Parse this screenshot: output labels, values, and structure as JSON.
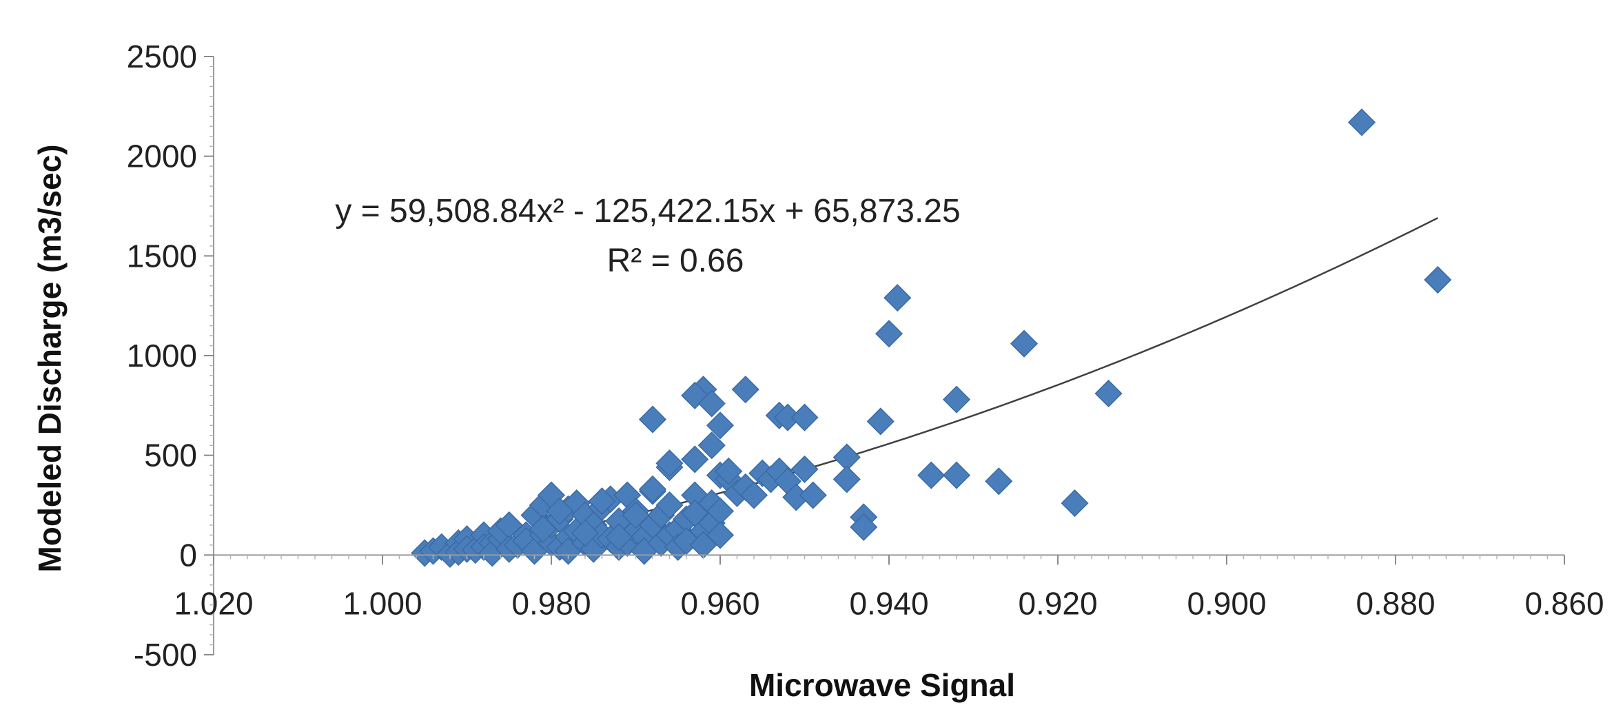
{
  "chart_data": {
    "type": "scatter",
    "title": "",
    "xlabel": "Microwave Signal",
    "ylabel": "Modeled Discharge (m3/sec)",
    "xlim": [
      1.02,
      0.86
    ],
    "ylim": [
      -500,
      2500
    ],
    "x_reversed": true,
    "x_ticks": [
      1.02,
      1.0,
      0.98,
      0.96,
      0.94,
      0.92,
      0.9,
      0.88,
      0.86
    ],
    "x_tick_labels": [
      "1.020",
      "1.000",
      "0.980",
      "0.960",
      "0.940",
      "0.920",
      "0.900",
      "0.880",
      "0.860"
    ],
    "y_ticks": [
      -500,
      0,
      500,
      1000,
      1500,
      2000,
      2500
    ],
    "y_tick_labels": [
      "-500",
      "0",
      "500",
      "1000",
      "1500",
      "2000",
      "2500"
    ],
    "grid": false,
    "legend": "none",
    "marker": "diamond",
    "marker_color": "#4a7ebb",
    "trendline": {
      "type": "polynomial",
      "coefficients": [
        59508.84,
        -125422.15,
        65873.25
      ],
      "x_range": [
        0.995,
        0.875
      ],
      "color": "#404040",
      "equation_label": "y = 59,508.84x² - 125,422.15x + 65,873.25",
      "r2_label": "R² = 0.66"
    },
    "series": [
      {
        "x": [
          0.995,
          0.994,
          0.993,
          0.992,
          0.991,
          0.991,
          0.99,
          0.99,
          0.989,
          0.988,
          0.988,
          0.987,
          0.987,
          0.986,
          0.986,
          0.985,
          0.985,
          0.984,
          0.983,
          0.983,
          0.982,
          0.982,
          0.981,
          0.981,
          0.98,
          0.98,
          0.98,
          0.979,
          0.979,
          0.978,
          0.978,
          0.978,
          0.977,
          0.977,
          0.976,
          0.976,
          0.975,
          0.975,
          0.974,
          0.974,
          0.973,
          0.973,
          0.972,
          0.972,
          0.971,
          0.971,
          0.97,
          0.97,
          0.969,
          0.969,
          0.968,
          0.968,
          0.967,
          0.967,
          0.966,
          0.966,
          0.965,
          0.965,
          0.964,
          0.964,
          0.963,
          0.963,
          0.962,
          0.962,
          0.961,
          0.961,
          0.96,
          0.96,
          0.96,
          0.959,
          0.958,
          0.957,
          0.956,
          0.955,
          0.954,
          0.953,
          0.952,
          0.951,
          0.95,
          0.949,
          0.945,
          0.945,
          0.943,
          0.943,
          0.981,
          0.979,
          0.976,
          0.974,
          0.972,
          0.97,
          0.968,
          0.966,
          0.963,
          0.962,
          0.961,
          0.96,
          0.968,
          0.966,
          0.963,
          0.961,
          0.959,
          0.957,
          0.953,
          0.952,
          0.95,
          0.941,
          0.94,
          0.939,
          0.935,
          0.932,
          0.932,
          0.927,
          0.924,
          0.918,
          0.914,
          0.875,
          0.884
        ],
        "y": [
          10,
          20,
          40,
          5,
          60,
          15,
          80,
          30,
          25,
          100,
          40,
          60,
          10,
          80,
          120,
          150,
          30,
          50,
          100,
          70,
          200,
          20,
          250,
          100,
          60,
          150,
          300,
          180,
          40,
          230,
          90,
          20,
          120,
          260,
          60,
          200,
          150,
          30,
          240,
          100,
          80,
          280,
          170,
          40,
          60,
          300,
          220,
          120,
          90,
          20,
          150,
          320,
          60,
          200,
          100,
          250,
          130,
          40,
          180,
          70,
          300,
          210,
          120,
          50,
          260,
          160,
          220,
          100,
          400,
          380,
          310,
          340,
          300,
          410,
          380,
          420,
          370,
          290,
          430,
          300,
          490,
          380,
          190,
          140,
          130,
          220,
          110,
          270,
          90,
          200,
          330,
          440,
          480,
          830,
          550,
          650,
          680,
          460,
          800,
          760,
          420,
          830,
          700,
          690,
          690,
          670,
          1110,
          1290,
          400,
          780,
          400,
          370,
          1060,
          260,
          810,
          1380,
          2170
        ]
      }
    ]
  }
}
